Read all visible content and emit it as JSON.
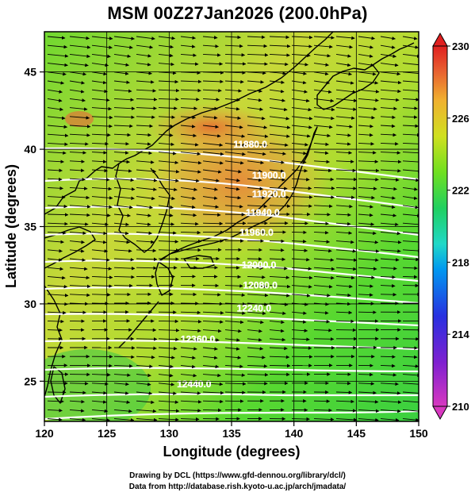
{
  "title": "MSM 00Z27Jan2026 (200.0hPa)",
  "footer": {
    "drawing_credit": "Drawing by DCL (https://www.gfd-dennou.org/library/dcl/)",
    "data_credit": "Data from http://database.rish.kyoto-u.ac.jp/arch/jmadata/"
  },
  "axes": {
    "xlabel": "Longitude (degrees)",
    "ylabel": "Latitude  (degrees)",
    "xlim": [
      120,
      150
    ],
    "ylim": [
      22.4,
      47.6
    ],
    "xticks": [
      120,
      125,
      130,
      135,
      140,
      145,
      150
    ],
    "yticks": [
      25,
      30,
      35,
      40,
      45
    ],
    "grid": true
  },
  "colorbar": {
    "min": 210,
    "max": 230,
    "tick_labels": [
      "210",
      "214",
      "218",
      "222",
      "226",
      "230"
    ],
    "colors": [
      "#e040c0",
      "#9020d0",
      "#3030e0",
      "#00a0f0",
      "#20d8c0",
      "#20d060",
      "#50e020",
      "#a0e020",
      "#e0e020",
      "#f0a030",
      "#e85030",
      "#e02020"
    ]
  },
  "contours": {
    "labels": [
      {
        "text": "11880.0",
        "lon": 136.5,
        "lat": 40.1
      },
      {
        "text": "11900.0",
        "lon": 138.0,
        "lat": 38.1
      },
      {
        "text": "11920.0",
        "lon": 138.0,
        "lat": 36.9
      },
      {
        "text": "11940.0",
        "lon": 137.5,
        "lat": 35.7
      },
      {
        "text": "11960.0",
        "lon": 137.0,
        "lat": 34.4
      },
      {
        "text": "12000.0",
        "lon": 137.2,
        "lat": 32.3
      },
      {
        "text": "12080.0",
        "lon": 137.3,
        "lat": 31.0
      },
      {
        "text": "12240.0",
        "lon": 136.8,
        "lat": 29.5
      },
      {
        "text": "12360.0",
        "lon": 132.3,
        "lat": 27.5
      },
      {
        "text": "12440.0",
        "lon": 132.0,
        "lat": 24.6
      }
    ]
  }
}
